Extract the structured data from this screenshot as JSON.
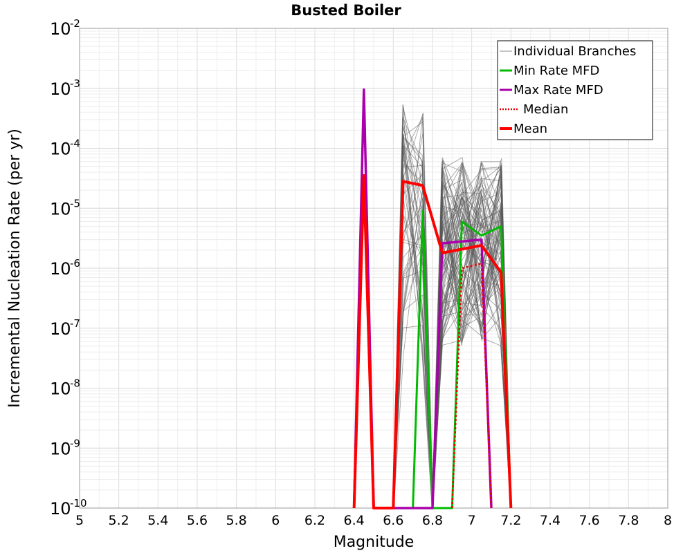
{
  "chart_data": {
    "type": "line",
    "title": "Busted Boiler",
    "xlabel": "Magnitude",
    "ylabel": "Incremental Nucleation Rate (per yr)",
    "xlim": [
      5,
      8
    ],
    "ylim_log10": [
      -10,
      -2
    ],
    "y_scale": "log",
    "grid": true,
    "x_ticks": [
      "5",
      "5.2",
      "5.4",
      "5.6",
      "5.8",
      "6",
      "6.2",
      "6.4",
      "6.6",
      "6.8",
      "7",
      "7.2",
      "7.4",
      "7.6",
      "7.8",
      "8"
    ],
    "y_ticks": [
      {
        "base": "10",
        "exp": "-2"
      },
      {
        "base": "10",
        "exp": "-3"
      },
      {
        "base": "10",
        "exp": "-4"
      },
      {
        "base": "10",
        "exp": "-5"
      },
      {
        "base": "10",
        "exp": "-6"
      },
      {
        "base": "10",
        "exp": "-7"
      },
      {
        "base": "10",
        "exp": "-8"
      },
      {
        "base": "10",
        "exp": "-9"
      },
      {
        "base": "10",
        "exp": "-10"
      }
    ],
    "legend_position": "top-right",
    "legend": [
      {
        "label": "Individual Branches",
        "color": "#8c8c8c",
        "style": "thin"
      },
      {
        "label": "Min Rate MFD",
        "color": "#00bb00",
        "style": "solid"
      },
      {
        "label": "Max Rate MFD",
        "color": "#aa00aa",
        "style": "solid"
      },
      {
        "label": "Median",
        "color": "#ee0000",
        "style": "dotted"
      },
      {
        "label": "Mean",
        "color": "#ff0000",
        "style": "thick"
      }
    ],
    "series": [
      {
        "name": "Min Rate MFD",
        "color": "#00bb00",
        "width": 3,
        "dash": "",
        "points": [
          [
            6.7,
            1e-10
          ],
          [
            6.75,
            9e-06
          ],
          [
            6.8,
            1e-10
          ],
          [
            6.9,
            1e-10
          ],
          [
            6.95,
            6e-06
          ],
          [
            7.05,
            3.5e-06
          ],
          [
            7.15,
            5e-06
          ],
          [
            7.2,
            1e-10
          ]
        ]
      },
      {
        "name": "Max Rate MFD",
        "color": "#aa00aa",
        "width": 3.5,
        "dash": "",
        "points": [
          [
            6.4,
            1e-10
          ],
          [
            6.45,
            0.00095
          ],
          [
            6.5,
            1e-10
          ],
          [
            6.8,
            1e-10
          ],
          [
            6.85,
            2.6e-06
          ],
          [
            7.05,
            3e-06
          ],
          [
            7.1,
            1e-10
          ]
        ]
      },
      {
        "name": "Median",
        "color": "#ee0000",
        "width": 2.5,
        "dash": "3,3",
        "points": [
          [
            6.9,
            1e-10
          ],
          [
            6.95,
            1e-06
          ],
          [
            7.05,
            1.2e-06
          ],
          [
            7.1,
            1e-10
          ]
        ]
      },
      {
        "name": "Mean",
        "color": "#ff0000",
        "width": 4,
        "dash": "",
        "points": [
          [
            6.4,
            1e-10
          ],
          [
            6.45,
            3.5e-05
          ],
          [
            6.5,
            1e-10
          ],
          [
            6.6,
            1e-10
          ],
          [
            6.65,
            2.8e-05
          ],
          [
            6.75,
            2.4e-05
          ],
          [
            6.85,
            1.8e-06
          ],
          [
            7.05,
            2.4e-06
          ],
          [
            7.15,
            8.5e-07
          ],
          [
            7.2,
            1e-10
          ]
        ]
      }
    ],
    "branch_groups": [
      {
        "magnitudes": [
          6.65,
          6.75
        ],
        "log10_min": -7.5,
        "log10_max": -3.25,
        "count": 48
      },
      {
        "magnitudes": [
          6.85,
          6.95,
          7.05,
          7.15
        ],
        "log10_min": -7.3,
        "log10_max": -4.15,
        "count": 90
      }
    ]
  }
}
